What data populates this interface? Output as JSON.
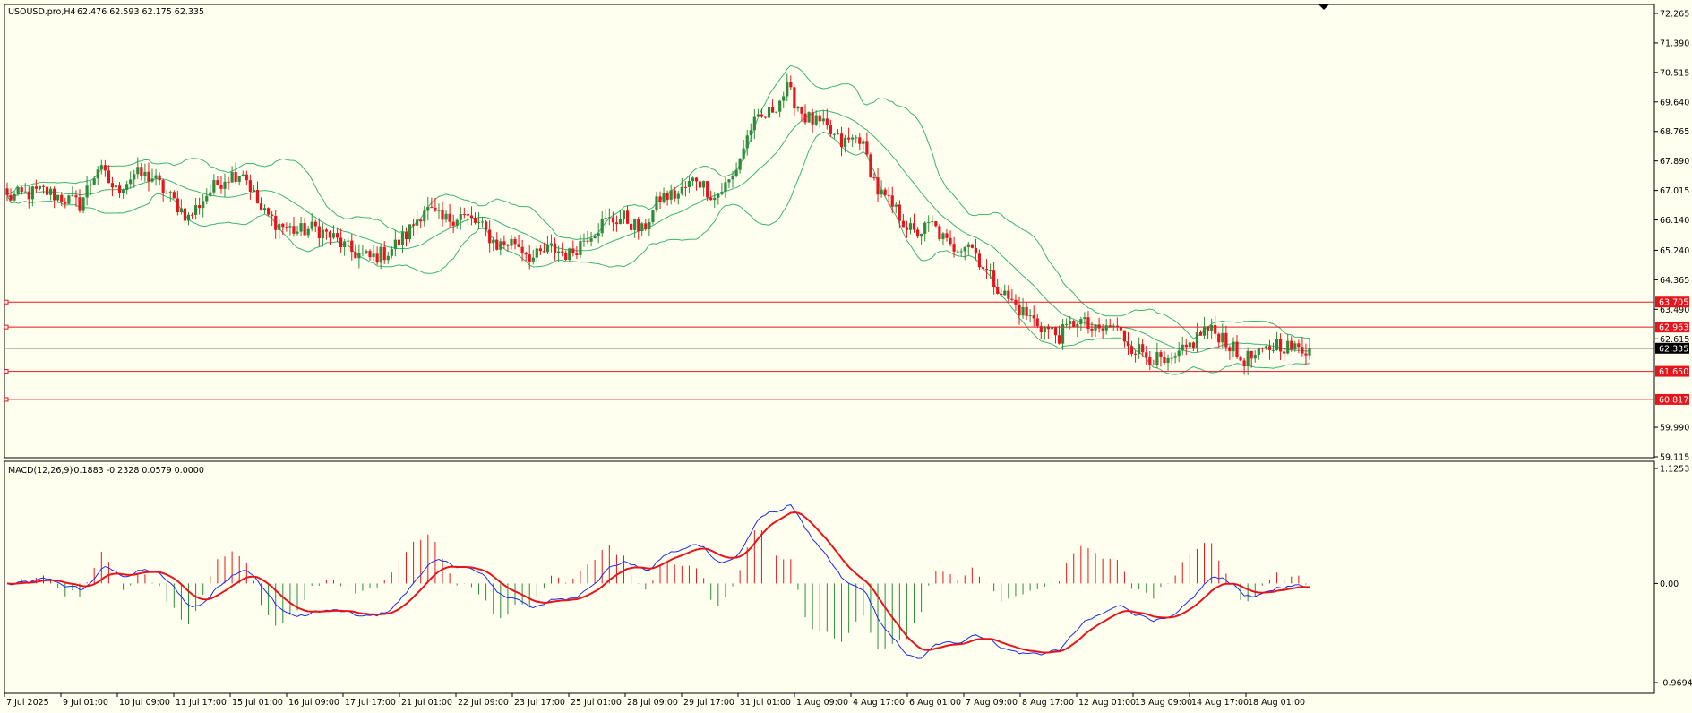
{
  "window": {
    "title": "USOUSD.pro,H4",
    "ohlc": "62.476 62.593 62.175 62.335"
  },
  "indicator": {
    "title": "MACD(12,26,9)",
    "values": "-0.1883 -0.2328 0.0579 0.0000"
  },
  "colors": {
    "background": "#fffff0",
    "bull": "#2e8b3a",
    "bear": "#e8141c",
    "bands": "#3cb371",
    "hline": "#e8141c",
    "macd_line": "#1a2be8",
    "signal_line": "#e8141c"
  },
  "chart_data": [
    {
      "type": "candlestick",
      "symbol": "USOUSD.pro",
      "timeframe": "H4",
      "y_ticks": [
        "72.265",
        "71.390",
        "70.515",
        "69.640",
        "68.765",
        "67.890",
        "67.015",
        "66.140",
        "65.240",
        "64.365",
        "63.490",
        "62.615",
        "59.990",
        "59.115"
      ],
      "ylim": [
        59.115,
        72.265
      ],
      "x_ticks": [
        "7 Jul 2025",
        "9 Jul 01:00",
        "10 Jul 09:00",
        "11 Jul 17:00",
        "15 Jul 01:00",
        "16 Jul 09:00",
        "17 Jul 17:00",
        "21 Jul 01:00",
        "22 Jul 09:00",
        "23 Jul 17:00",
        "25 Jul 01:00",
        "28 Jul 09:00",
        "29 Jul 17:00",
        "31 Jul 01:00",
        "1 Aug 09:00",
        "4 Aug 17:00",
        "6 Aug 01:00",
        "7 Aug 09:00",
        "8 Aug 17:00",
        "12 Aug 01:00",
        "13 Aug 09:00",
        "14 Aug 17:00",
        "18 Aug 01:00"
      ],
      "current_price": "62.335",
      "price_levels": [
        "63.705",
        "62.963",
        "61.650",
        "60.817"
      ],
      "close_path": [
        [
          0,
          66.8
        ],
        [
          10,
          67.0
        ],
        [
          20,
          66.6
        ],
        [
          25,
          67.7
        ],
        [
          30,
          67.0
        ],
        [
          35,
          67.5
        ],
        [
          40,
          67.4
        ],
        [
          45,
          66.8
        ],
        [
          50,
          66.2
        ],
        [
          55,
          66.9
        ],
        [
          60,
          67.4
        ],
        [
          65,
          67.6
        ],
        [
          70,
          66.4
        ],
        [
          75,
          66.0
        ],
        [
          80,
          65.8
        ],
        [
          85,
          65.9
        ],
        [
          90,
          65.6
        ],
        [
          95,
          65.2
        ],
        [
          100,
          65.0
        ],
        [
          105,
          65.2
        ],
        [
          110,
          65.7
        ],
        [
          115,
          66.5
        ],
        [
          120,
          66.1
        ],
        [
          125,
          66.3
        ],
        [
          130,
          66.0
        ],
        [
          135,
          65.4
        ],
        [
          140,
          65.5
        ],
        [
          145,
          65.0
        ],
        [
          150,
          65.3
        ],
        [
          155,
          65.1
        ],
        [
          160,
          65.7
        ],
        [
          165,
          66.1
        ],
        [
          170,
          66.2
        ],
        [
          175,
          65.8
        ],
        [
          180,
          66.8
        ],
        [
          185,
          66.9
        ],
        [
          190,
          67.4
        ],
        [
          195,
          66.8
        ],
        [
          200,
          67.4
        ],
        [
          205,
          68.9
        ],
        [
          210,
          69.3
        ],
        [
          215,
          70.0
        ],
        [
          220,
          69.2
        ],
        [
          225,
          68.9
        ],
        [
          230,
          68.4
        ],
        [
          235,
          68.6
        ],
        [
          240,
          67.0
        ],
        [
          245,
          66.4
        ],
        [
          250,
          65.7
        ],
        [
          255,
          66.0
        ],
        [
          260,
          65.3
        ],
        [
          265,
          65.5
        ],
        [
          270,
          64.6
        ],
        [
          275,
          63.9
        ],
        [
          280,
          63.4
        ],
        [
          285,
          63.0
        ],
        [
          290,
          62.7
        ],
        [
          295,
          63.2
        ],
        [
          300,
          62.8
        ],
        [
          305,
          63.0
        ],
        [
          310,
          62.4
        ],
        [
          315,
          62.1
        ],
        [
          320,
          61.8
        ],
        [
          325,
          62.3
        ],
        [
          330,
          62.9
        ],
        [
          335,
          62.7
        ],
        [
          340,
          62.0
        ],
        [
          345,
          62.1
        ],
        [
          350,
          62.5
        ],
        [
          355,
          62.3
        ]
      ],
      "candle_count": 360
    },
    {
      "type": "line+histogram",
      "name": "MACD(12,26,9)",
      "y_ticks": [
        "1.1253",
        "0.00",
        "-0.9694"
      ],
      "ylim": [
        -0.9694,
        1.1253
      ]
    }
  ]
}
